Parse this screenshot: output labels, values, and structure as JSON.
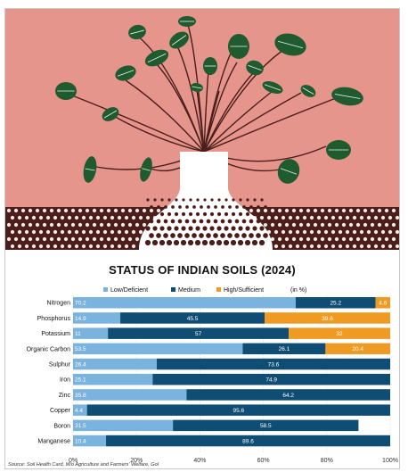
{
  "colors": {
    "low": "#7ab3dd",
    "medium": "#0f4d74",
    "high": "#ef9a23",
    "illustration_bg": "#e6958c",
    "illustration_dark": "#4a1f1b",
    "plant_green": "#1f5b2e"
  },
  "chart_data": {
    "type": "bar",
    "orientation": "horizontal",
    "stacked": true,
    "title": "STATUS OF INDIAN SOILS (2024)",
    "unit_note": "(in %)",
    "categories": [
      "Nitrogen",
      "Phosphorus",
      "Potassium",
      "Organic Carbon",
      "Sulphur",
      "Iron",
      "Zinc",
      "Copper",
      "Boron",
      "Manganese"
    ],
    "series": [
      {
        "name": "Low/Deficient",
        "values": [
          70.2,
          14.9,
          11,
          53.5,
          26.4,
          25.1,
          35.8,
          4.4,
          31.5,
          10.4
        ]
      },
      {
        "name": "Medium",
        "values": [
          25.2,
          45.5,
          57,
          26.1,
          73.6,
          74.9,
          64.2,
          95.6,
          58.5,
          89.6
        ]
      },
      {
        "name": "High/Sufficient",
        "values": [
          4.6,
          39.6,
          32,
          20.4,
          0,
          0,
          0,
          0,
          0,
          0
        ]
      }
    ],
    "x_ticks": [
      "0%",
      "20%",
      "40%",
      "60%",
      "80%",
      "100%"
    ],
    "xlim": [
      0,
      100
    ],
    "legend_position": "top",
    "source": "Source: Soil Health Card, M/o Agriculture and Farmers' Welfare, GoI"
  }
}
